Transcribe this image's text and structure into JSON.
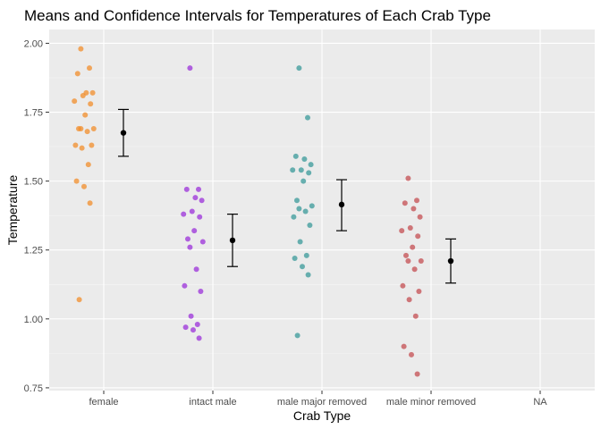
{
  "chart_data": {
    "type": "scatter",
    "title": "Means and Confidence Intervals for Temperatures of Each Crab Type",
    "xlabel": "Crab Type",
    "ylabel": "Temperature",
    "categories": [
      "female",
      "intact male",
      "male major removed",
      "male minor removed",
      "NA"
    ],
    "ylim": [
      0.74,
      2.05
    ],
    "yticks": [
      "0.75",
      "1.00",
      "1.25",
      "1.50",
      "1.75",
      "2.00"
    ],
    "grid": true,
    "legend": "none",
    "series": [
      {
        "color": "#f28e2b",
        "points": [
          {
            "x": "female",
            "y": 1.98
          },
          {
            "x": "female",
            "y": 1.91
          },
          {
            "x": "female",
            "y": 1.89
          },
          {
            "x": "female",
            "y": 1.82
          },
          {
            "x": "female",
            "y": 1.82
          },
          {
            "x": "female",
            "y": 1.81
          },
          {
            "x": "female",
            "y": 1.79
          },
          {
            "x": "female",
            "y": 1.78
          },
          {
            "x": "female",
            "y": 1.74
          },
          {
            "x": "female",
            "y": 1.69
          },
          {
            "x": "female",
            "y": 1.69
          },
          {
            "x": "female",
            "y": 1.69
          },
          {
            "x": "female",
            "y": 1.68
          },
          {
            "x": "female",
            "y": 1.63
          },
          {
            "x": "female",
            "y": 1.63
          },
          {
            "x": "female",
            "y": 1.62
          },
          {
            "x": "female",
            "y": 1.56
          },
          {
            "x": "female",
            "y": 1.5
          },
          {
            "x": "female",
            "y": 1.48
          },
          {
            "x": "female",
            "y": 1.42
          },
          {
            "x": "female",
            "y": 1.07
          }
        ]
      },
      {
        "color": "#9b30d9",
        "points": [
          {
            "x": "intact male",
            "y": 1.91
          },
          {
            "x": "intact male",
            "y": 1.47
          },
          {
            "x": "intact male",
            "y": 1.47
          },
          {
            "x": "intact male",
            "y": 1.44
          },
          {
            "x": "intact male",
            "y": 1.43
          },
          {
            "x": "intact male",
            "y": 1.39
          },
          {
            "x": "intact male",
            "y": 1.38
          },
          {
            "x": "intact male",
            "y": 1.37
          },
          {
            "x": "intact male",
            "y": 1.32
          },
          {
            "x": "intact male",
            "y": 1.29
          },
          {
            "x": "intact male",
            "y": 1.28
          },
          {
            "x": "intact male",
            "y": 1.26
          },
          {
            "x": "intact male",
            "y": 1.18
          },
          {
            "x": "intact male",
            "y": 1.12
          },
          {
            "x": "intact male",
            "y": 1.1
          },
          {
            "x": "intact male",
            "y": 1.01
          },
          {
            "x": "intact male",
            "y": 0.98
          },
          {
            "x": "intact male",
            "y": 0.97
          },
          {
            "x": "intact male",
            "y": 0.96
          },
          {
            "x": "intact male",
            "y": 0.93
          }
        ]
      },
      {
        "color": "#3a9a9a",
        "points": [
          {
            "x": "male major removed",
            "y": 1.91
          },
          {
            "x": "male major removed",
            "y": 1.73
          },
          {
            "x": "male major removed",
            "y": 1.59
          },
          {
            "x": "male major removed",
            "y": 1.58
          },
          {
            "x": "male major removed",
            "y": 1.56
          },
          {
            "x": "male major removed",
            "y": 1.54
          },
          {
            "x": "male major removed",
            "y": 1.54
          },
          {
            "x": "male major removed",
            "y": 1.53
          },
          {
            "x": "male major removed",
            "y": 1.5
          },
          {
            "x": "male major removed",
            "y": 1.43
          },
          {
            "x": "male major removed",
            "y": 1.41
          },
          {
            "x": "male major removed",
            "y": 1.4
          },
          {
            "x": "male major removed",
            "y": 1.39
          },
          {
            "x": "male major removed",
            "y": 1.37
          },
          {
            "x": "male major removed",
            "y": 1.34
          },
          {
            "x": "male major removed",
            "y": 1.28
          },
          {
            "x": "male major removed",
            "y": 1.23
          },
          {
            "x": "male major removed",
            "y": 1.22
          },
          {
            "x": "male major removed",
            "y": 1.19
          },
          {
            "x": "male major removed",
            "y": 1.16
          },
          {
            "x": "male major removed",
            "y": 0.94
          }
        ]
      },
      {
        "color": "#c44e52",
        "points": [
          {
            "x": "male minor removed",
            "y": 1.51
          },
          {
            "x": "male minor removed",
            "y": 1.43
          },
          {
            "x": "male minor removed",
            "y": 1.42
          },
          {
            "x": "male minor removed",
            "y": 1.4
          },
          {
            "x": "male minor removed",
            "y": 1.37
          },
          {
            "x": "male minor removed",
            "y": 1.33
          },
          {
            "x": "male minor removed",
            "y": 1.32
          },
          {
            "x": "male minor removed",
            "y": 1.3
          },
          {
            "x": "male minor removed",
            "y": 1.26
          },
          {
            "x": "male minor removed",
            "y": 1.23
          },
          {
            "x": "male minor removed",
            "y": 1.21
          },
          {
            "x": "male minor removed",
            "y": 1.21
          },
          {
            "x": "male minor removed",
            "y": 1.18
          },
          {
            "x": "male minor removed",
            "y": 1.12
          },
          {
            "x": "male minor removed",
            "y": 1.1
          },
          {
            "x": "male minor removed",
            "y": 1.07
          },
          {
            "x": "male minor removed",
            "y": 1.01
          },
          {
            "x": "male minor removed",
            "y": 0.9
          },
          {
            "x": "male minor removed",
            "y": 0.87
          },
          {
            "x": "male minor removed",
            "y": 0.8
          }
        ]
      }
    ],
    "summary": [
      {
        "x": "female",
        "mean": 1.675,
        "lower": 1.59,
        "upper": 1.76
      },
      {
        "x": "intact male",
        "mean": 1.285,
        "lower": 1.19,
        "upper": 1.38
      },
      {
        "x": "male major removed",
        "mean": 1.415,
        "lower": 1.32,
        "upper": 1.505
      },
      {
        "x": "male minor removed",
        "mean": 1.21,
        "lower": 1.13,
        "upper": 1.29
      }
    ],
    "summary_color": "#000000"
  }
}
